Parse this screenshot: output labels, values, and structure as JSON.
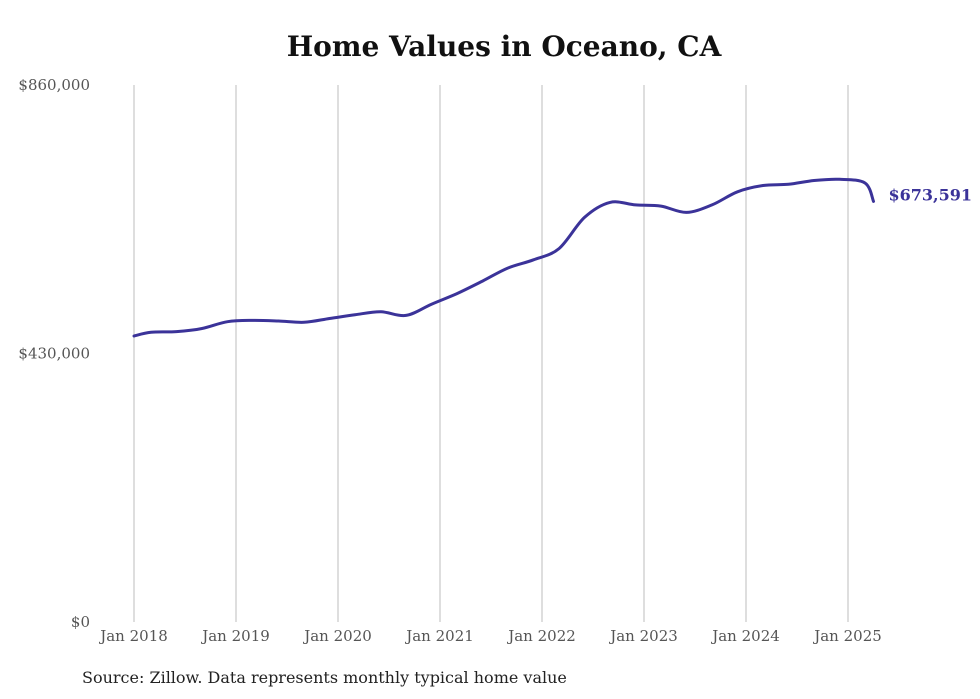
{
  "chart_data": {
    "type": "line",
    "title": "Home Values in Oceano, CA",
    "source": "Source: Zillow. Data represents monthly typical home value",
    "xlabel": "",
    "ylabel": "",
    "x_ticks": [
      "Jan 2018",
      "Jan 2019",
      "Jan 2020",
      "Jan 2021",
      "Jan 2022",
      "Jan 2023",
      "Jan 2024",
      "Jan 2025"
    ],
    "y_ticks": [
      {
        "value": 0,
        "label": "$0"
      },
      {
        "value": 430000,
        "label": "$430,000"
      },
      {
        "value": 860000,
        "label": "$860,000"
      }
    ],
    "ylim": [
      0,
      860000
    ],
    "xlim": [
      "2018-01",
      "2025-12"
    ],
    "grid": "vertical",
    "line_color": "#3b3399",
    "end_label": "$673,591",
    "series": [
      {
        "x": [
          "2018-01",
          "2018-03",
          "2018-06",
          "2018-09",
          "2018-12",
          "2019-03",
          "2019-06",
          "2019-09",
          "2019-12",
          "2020-03",
          "2020-06",
          "2020-09",
          "2020-12",
          "2021-03",
          "2021-06",
          "2021-09",
          "2021-12",
          "2022-03",
          "2022-06",
          "2022-09",
          "2022-12",
          "2023-03",
          "2023-06",
          "2023-09",
          "2023-12",
          "2024-03",
          "2024-06",
          "2024-09",
          "2024-12",
          "2025-03",
          "2025-04"
        ],
        "values": [
          458000,
          464000,
          465000,
          470000,
          481000,
          483000,
          482000,
          480000,
          486000,
          492000,
          497000,
          491000,
          509000,
          526000,
          546000,
          567000,
          580000,
          598000,
          648000,
          672000,
          668000,
          666000,
          656000,
          668000,
          689000,
          699000,
          701000,
          707000,
          709000,
          703000,
          673591
        ]
      }
    ]
  }
}
